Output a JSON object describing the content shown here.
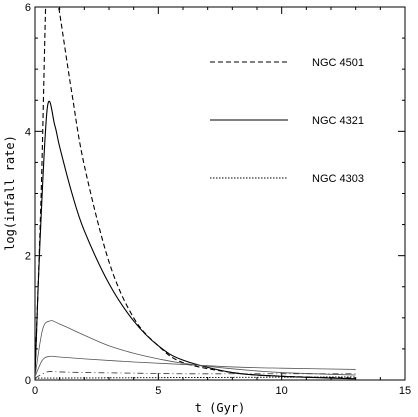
{
  "chart_data": {
    "type": "line",
    "xlabel": "t (Gyr)",
    "ylabel": "log(infall rate)",
    "xlim": [
      0,
      15
    ],
    "ylim": [
      0,
      6
    ],
    "x_ticks": [
      "0",
      "5",
      "10",
      "15"
    ],
    "y_ticks": [
      "0",
      "2",
      "4",
      "6"
    ],
    "grid": false,
    "legend_position": "upper-right",
    "series": [
      {
        "name": "NGC 4501",
        "style": "dashed",
        "color": "#000000",
        "x": [
          0,
          0.25,
          0.5,
          0.75,
          1.0,
          1.5,
          2,
          3,
          4,
          5,
          6,
          8,
          10,
          13
        ],
        "y": [
          0.1,
          3.0,
          6.8,
          6.5,
          5.9,
          4.6,
          3.45,
          1.9,
          1.0,
          0.55,
          0.28,
          0.12,
          0.06,
          0.03
        ]
      },
      {
        "name": "NGC 4321",
        "style": "solid",
        "color": "#000000",
        "x": [
          0,
          0.2,
          0.5,
          0.8,
          1.0,
          1.5,
          2,
          3,
          4,
          5,
          6,
          8,
          10,
          13
        ],
        "y": [
          0.05,
          2.2,
          4.38,
          4.1,
          3.75,
          3.0,
          2.4,
          1.55,
          0.95,
          0.55,
          0.32,
          0.12,
          0.06,
          0.02
        ]
      },
      {
        "name": "NGC 4303",
        "style": "dotted",
        "color": "#000000",
        "x": [
          0,
          13
        ],
        "y": [
          0.03,
          0.05
        ]
      },
      {
        "name": "",
        "style": "thin-solid",
        "color": "#555555",
        "x": [
          0,
          0.3,
          0.6,
          1.0,
          2,
          3,
          4,
          5,
          6,
          8,
          10,
          13
        ],
        "y": [
          0.05,
          0.8,
          0.95,
          0.9,
          0.72,
          0.55,
          0.43,
          0.34,
          0.27,
          0.18,
          0.12,
          0.08
        ]
      },
      {
        "name": "",
        "style": "thin-solid",
        "color": "#555555",
        "x": [
          0,
          0.3,
          0.6,
          1.0,
          2,
          4,
          6,
          8,
          10,
          13
        ],
        "y": [
          0.05,
          0.32,
          0.38,
          0.37,
          0.34,
          0.29,
          0.25,
          0.21,
          0.19,
          0.17
        ]
      },
      {
        "name": "",
        "style": "dash-dot",
        "color": "#333333",
        "x": [
          0,
          0.5,
          1.0,
          2,
          4,
          6,
          8,
          10,
          13
        ],
        "y": [
          0.03,
          0.13,
          0.13,
          0.12,
          0.11,
          0.1,
          0.1,
          0.1,
          0.1
        ]
      }
    ]
  }
}
